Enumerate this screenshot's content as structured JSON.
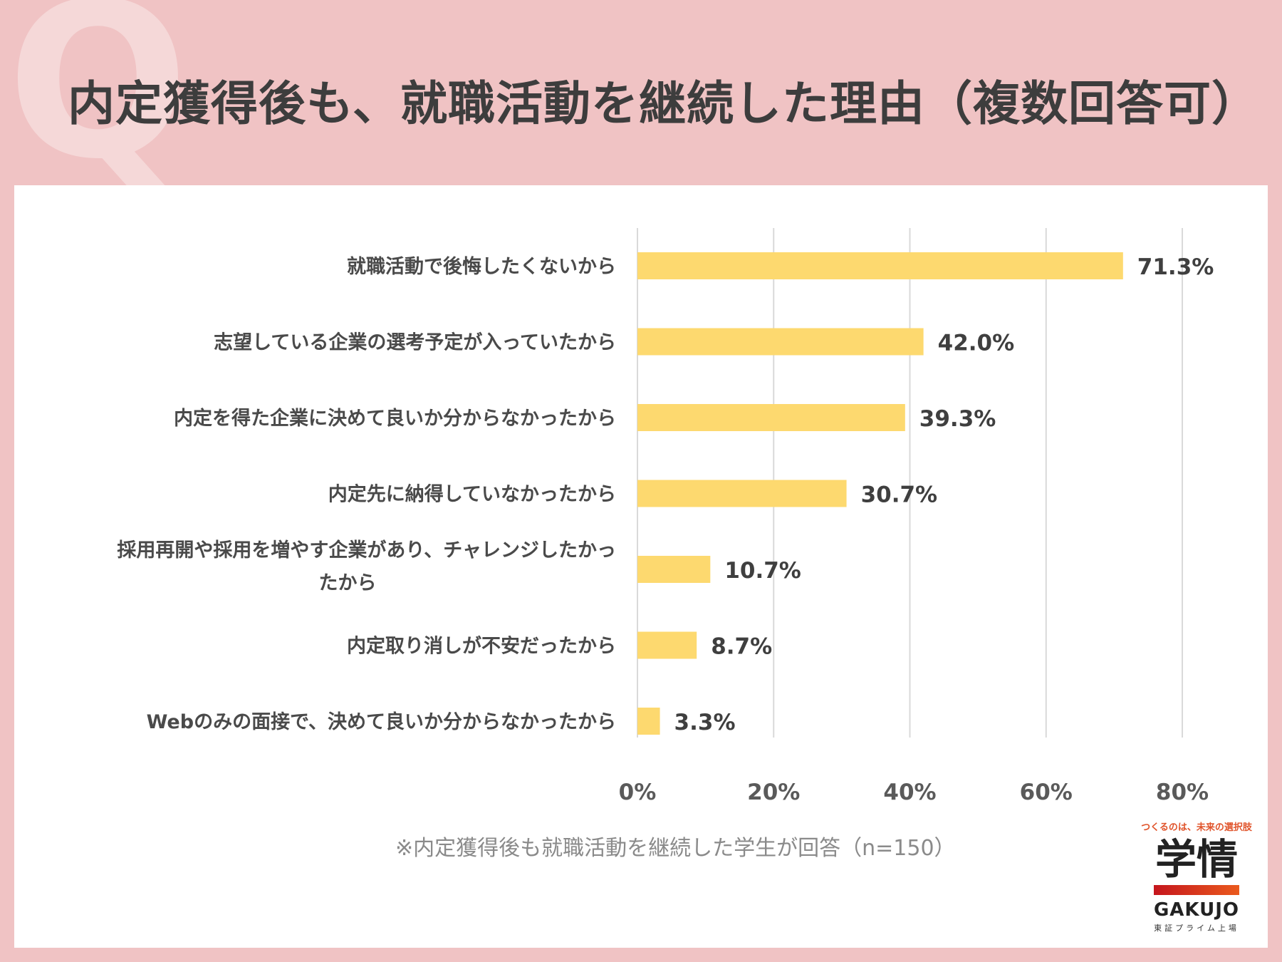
{
  "header": {
    "watermark": "Q",
    "title": "内定獲得後も、就職活動を継続した理由（複数回答可）"
  },
  "colors": {
    "background": "#f0c3c4",
    "panel": "#ffffff",
    "bar": "#fdd96f",
    "grid": "#d9d9d9",
    "title": "#3d3d3d"
  },
  "chart_data": {
    "type": "bar",
    "orientation": "horizontal",
    "categories": [
      "就職活動で後悔したくないから",
      "志望している企業の選考予定が入っていたから",
      "内定を得た企業に決めて良いか分からなかったから",
      "内定先に納得していなかったから",
      "採用再開や採用を増やす企業があり、チャレンジしたかったから",
      "内定取り消しが不安だったから",
      "Webのみの面接で、決めて良いか分からなかったから"
    ],
    "values": [
      71.3,
      42.0,
      39.3,
      30.7,
      10.7,
      8.7,
      3.3
    ],
    "value_labels": [
      "71.3%",
      "42.0%",
      "39.3%",
      "30.7%",
      "10.7%",
      "8.7%",
      "3.3%"
    ],
    "xlim": [
      0,
      80
    ],
    "xticks": [
      0,
      20,
      40,
      60,
      80
    ],
    "xtick_labels": [
      "0%",
      "20%",
      "40%",
      "60%",
      "80%"
    ],
    "grid": true,
    "legend": "none"
  },
  "footnote": "※内定獲得後も就職活動を継続した学生が回答（n=150）",
  "logo": {
    "tagline": "つくるのは、未来の選択肢",
    "kanji": "学情",
    "english": "GAKUJO",
    "subtitle": "東証プライム上場"
  }
}
